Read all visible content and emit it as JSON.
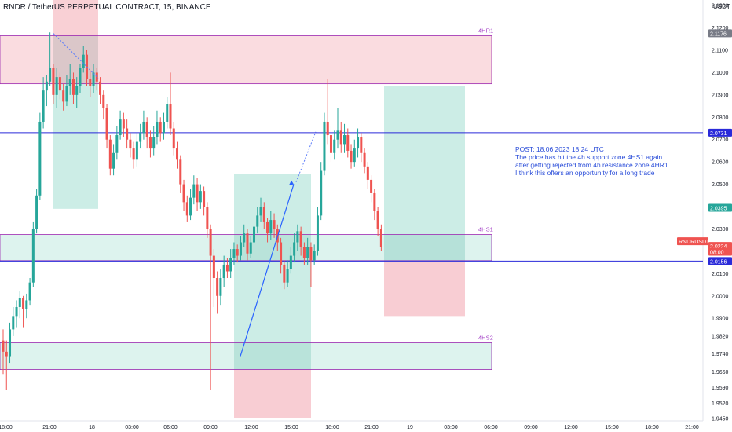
{
  "header": {
    "title": "RNDR / TetherUS PERPETUAL CONTRACT, 15, BINANCE",
    "currency": "USDT"
  },
  "note": {
    "text": "POST: 18.06.2023 18:24 UTC\nThe price has hit the 4h support zone 4HS1 again after getting rejected from 4h resistance zone 4HR1. I think this offers an opportunity for a long trade"
  },
  "colors": {
    "up": "#26a69a",
    "down": "#ef5350",
    "zone_fill": "#f7c4cb",
    "zone_fill_green": "#c6ebe3",
    "zone_border": "#9c27b0",
    "level_line": "#2a2ad9",
    "label_purple": "#a33fc6",
    "arrow": "#2962ff"
  },
  "chart_data": {
    "type": "candlestick",
    "ylim": [
      1.944,
      2.1325
    ],
    "y_ticks": [
      "2.1300",
      "2.1200",
      "2.1100",
      "2.1000",
      "2.0900",
      "2.0800",
      "2.0700",
      "2.0600",
      "2.0500",
      "2.0400",
      "2.0300",
      "2.0200",
      "2.0100",
      "2.0000",
      "1.9900",
      "1.9820",
      "1.9740",
      "1.9660",
      "1.9590",
      "1.9520",
      "1.9450"
    ],
    "x_ticks": [
      "18:00",
      "21:00",
      "18",
      "03:00",
      "06:00",
      "09:00",
      "12:00",
      "15:00",
      "18:00",
      "21:00",
      "19",
      "03:00",
      "06:00",
      "09:00",
      "12:00",
      "15:00",
      "18:00",
      "21:00"
    ],
    "zones": [
      {
        "name": "4HR1",
        "low": 2.095,
        "high": 2.1165
      },
      {
        "name": "4HS1",
        "low": 2.0158,
        "high": 2.0275
      },
      {
        "name": "4HS2",
        "low": 1.967,
        "high": 1.979
      }
    ],
    "levels": [
      2.0731,
      2.0156
    ],
    "price_labels": [
      {
        "text": "2.1176",
        "value": 2.1176,
        "color": "#787b86"
      },
      {
        "text": "2.0731",
        "value": 2.0731,
        "color": "#2a2ad9"
      },
      {
        "text": "2.0395",
        "value": 2.0395,
        "color": "#26a69a"
      },
      {
        "text": "RNDRUSDT.P",
        "value": 2.0245,
        "color": "#ef5350"
      },
      {
        "text": "2.0224",
        "value": 2.0224,
        "color": "#ef5350"
      },
      {
        "text": "08:00",
        "value": 2.0198,
        "color": "#ef5350"
      },
      {
        "text": "2.0156",
        "value": 2.0156,
        "color": "#2a2ad9"
      }
    ],
    "series": [
      {
        "values": [
          [
            1.98,
            1.975,
            1.985,
            1.965
          ],
          [
            1.975,
            1.973,
            1.98,
            1.958
          ],
          [
            1.973,
            1.985,
            1.988,
            1.97
          ],
          [
            1.985,
            1.991,
            1.995,
            1.982
          ],
          [
            1.991,
            1.995,
            1.998,
            1.986
          ],
          [
            1.995,
            1.999,
            2.002,
            1.99
          ],
          [
            1.999,
            1.994,
            2.0,
            1.986
          ],
          [
            1.994,
            1.998,
            2.001,
            1.99
          ],
          [
            1.998,
            2.006,
            2.008,
            1.996
          ],
          [
            2.006,
            2.03,
            2.033,
            2.004
          ],
          [
            2.03,
            2.045,
            2.048,
            2.028
          ],
          [
            2.045,
            2.078,
            2.082,
            2.043
          ],
          [
            2.078,
            2.092,
            2.098,
            2.075
          ],
          [
            2.092,
            2.096,
            2.099,
            2.085
          ],
          [
            2.096,
            2.102,
            2.118,
            2.094
          ],
          [
            2.102,
            2.09,
            2.104,
            2.086
          ],
          [
            2.09,
            2.098,
            2.102,
            2.084
          ],
          [
            2.098,
            2.092,
            2.1,
            2.088
          ],
          [
            2.092,
            2.087,
            2.095,
            2.083
          ],
          [
            2.087,
            2.094,
            2.099,
            2.085
          ],
          [
            2.094,
            2.097,
            2.104,
            2.09
          ],
          [
            2.097,
            2.09,
            2.1,
            2.086
          ],
          [
            2.09,
            2.094,
            2.098,
            2.084
          ],
          [
            2.094,
            2.102,
            2.104,
            2.091
          ],
          [
            2.102,
            2.108,
            2.112,
            2.1
          ],
          [
            2.108,
            2.097,
            2.11,
            2.094
          ],
          [
            2.097,
            2.094,
            2.101,
            2.089
          ],
          [
            2.094,
            2.1,
            2.104,
            2.091
          ],
          [
            2.1,
            2.096,
            2.102,
            2.092
          ],
          [
            2.096,
            2.09,
            2.098,
            2.086
          ],
          [
            2.09,
            2.084,
            2.092,
            2.079
          ],
          [
            2.084,
            2.07,
            2.086,
            2.066
          ],
          [
            2.07,
            2.057,
            2.072,
            2.054
          ],
          [
            2.057,
            2.064,
            2.068,
            2.054
          ],
          [
            2.064,
            2.072,
            2.076,
            2.061
          ],
          [
            2.072,
            2.079,
            2.083,
            2.07
          ],
          [
            2.079,
            2.075,
            2.082,
            2.071
          ],
          [
            2.075,
            2.07,
            2.079,
            2.066
          ],
          [
            2.07,
            2.066,
            2.073,
            2.062
          ],
          [
            2.066,
            2.061,
            2.069,
            2.057
          ],
          [
            2.061,
            2.069,
            2.073,
            2.058
          ],
          [
            2.069,
            2.073,
            2.077,
            2.066
          ],
          [
            2.073,
            2.078,
            2.083,
            2.07
          ],
          [
            2.078,
            2.071,
            2.08,
            2.066
          ],
          [
            2.071,
            2.066,
            2.074,
            2.062
          ],
          [
            2.066,
            2.071,
            2.076,
            2.063
          ],
          [
            2.071,
            2.078,
            2.083,
            2.068
          ],
          [
            2.078,
            2.073,
            2.08,
            2.069
          ],
          [
            2.073,
            2.078,
            2.082,
            2.07
          ],
          [
            2.078,
            2.086,
            2.089,
            2.075
          ],
          [
            2.086,
            2.075,
            2.1,
            2.072
          ],
          [
            2.075,
            2.066,
            2.078,
            2.063
          ],
          [
            2.066,
            2.061,
            2.069,
            2.057
          ],
          [
            2.061,
            2.05,
            2.063,
            2.046
          ],
          [
            2.05,
            2.042,
            2.052,
            2.038
          ],
          [
            2.042,
            2.036,
            2.045,
            2.033
          ],
          [
            2.036,
            2.044,
            2.048,
            2.034
          ],
          [
            2.044,
            2.05,
            2.054,
            2.041
          ],
          [
            2.05,
            2.042,
            2.053,
            2.038
          ],
          [
            2.042,
            2.047,
            2.05,
            2.039
          ],
          [
            2.047,
            2.04,
            2.049,
            2.036
          ],
          [
            2.04,
            2.03,
            2.042,
            2.026
          ],
          [
            2.03,
            2.018,
            2.032,
            1.958
          ],
          [
            2.018,
            2.008,
            2.021,
            1.995
          ],
          [
            2.008,
            2.0,
            2.011,
            1.992
          ],
          [
            2.0,
            2.008,
            2.012,
            1.996
          ],
          [
            2.008,
            2.014,
            2.018,
            2.004
          ],
          [
            2.014,
            2.011,
            2.017,
            2.008
          ],
          [
            2.011,
            2.017,
            2.021,
            2.008
          ],
          [
            2.017,
            2.021,
            2.024,
            2.014
          ],
          [
            2.021,
            2.018,
            2.023,
            2.015
          ],
          [
            2.018,
            2.024,
            2.027,
            2.016
          ],
          [
            2.024,
            2.028,
            2.032,
            2.022
          ],
          [
            2.028,
            2.019,
            2.03,
            2.016
          ],
          [
            2.019,
            2.024,
            2.027,
            2.017
          ],
          [
            2.024,
            2.031,
            2.035,
            2.022
          ],
          [
            2.031,
            2.036,
            2.04,
            2.028
          ],
          [
            2.036,
            2.04,
            2.044,
            2.033
          ],
          [
            2.04,
            2.033,
            2.042,
            2.03
          ],
          [
            2.033,
            2.028,
            2.035,
            2.024
          ],
          [
            2.028,
            2.034,
            2.038,
            2.025
          ],
          [
            2.034,
            2.03,
            2.037,
            2.026
          ],
          [
            2.03,
            2.024,
            2.032,
            2.02
          ],
          [
            2.024,
            2.014,
            2.026,
            2.01
          ],
          [
            2.014,
            2.006,
            2.016,
            2.003
          ],
          [
            2.006,
            2.012,
            2.016,
            2.004
          ],
          [
            2.012,
            2.018,
            2.022,
            2.01
          ],
          [
            2.018,
            2.024,
            2.028,
            2.015
          ],
          [
            2.024,
            2.029,
            2.032,
            2.02
          ],
          [
            2.029,
            2.022,
            2.031,
            2.018
          ],
          [
            2.022,
            2.017,
            2.024,
            2.014
          ],
          [
            2.017,
            2.022,
            2.026,
            2.014
          ],
          [
            2.022,
            2.016,
            2.024,
            2.004
          ],
          [
            2.016,
            2.02,
            2.023,
            2.014
          ],
          [
            2.02,
            2.036,
            2.04,
            2.018
          ],
          [
            2.036,
            2.056,
            2.06,
            2.034
          ],
          [
            2.056,
            2.078,
            2.082,
            2.054
          ],
          [
            2.078,
            2.072,
            2.097,
            2.068
          ],
          [
            2.072,
            2.064,
            2.076,
            2.06
          ],
          [
            2.064,
            2.07,
            2.074,
            2.061
          ],
          [
            2.07,
            2.074,
            2.084,
            2.066
          ],
          [
            2.074,
            2.068,
            2.078,
            2.064
          ],
          [
            2.068,
            2.072,
            2.077,
            2.064
          ],
          [
            2.072,
            2.065,
            2.075,
            2.062
          ],
          [
            2.065,
            2.06,
            2.068,
            2.057
          ],
          [
            2.06,
            2.066,
            2.07,
            2.058
          ],
          [
            2.066,
            2.071,
            2.075,
            2.062
          ],
          [
            2.071,
            2.064,
            2.073,
            2.06
          ],
          [
            2.064,
            2.058,
            2.066,
            2.055
          ],
          [
            2.058,
            2.052,
            2.06,
            2.048
          ],
          [
            2.052,
            2.046,
            2.054,
            2.042
          ],
          [
            2.046,
            2.038,
            2.048,
            2.034
          ],
          [
            2.038,
            2.03,
            2.04,
            2.027
          ],
          [
            2.03,
            2.022,
            2.032,
            2.02
          ]
        ]
      }
    ]
  }
}
